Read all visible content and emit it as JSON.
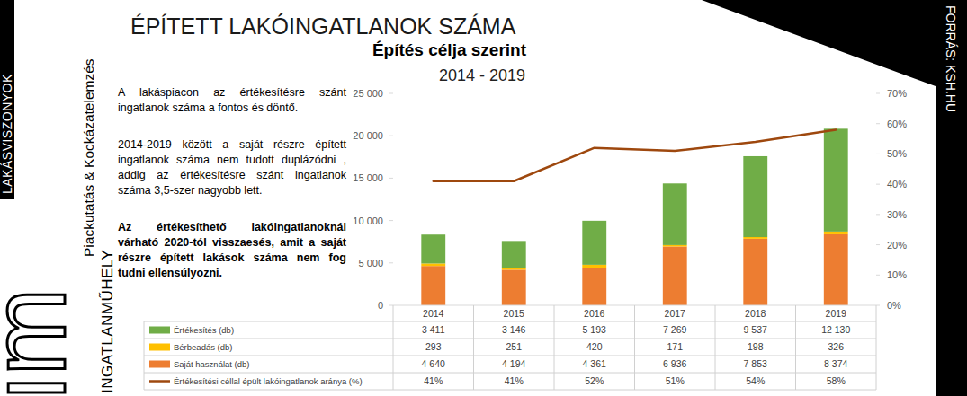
{
  "chart_data": {
    "type": "bar",
    "title": "ÉPÍTETT LAKÓINGATLANOK SZÁMA",
    "subtitle": "Építés célja szerint",
    "annotations": [
      "A lakáspiacon az értékesítésre szánt ingatlanok száma a fontos és döntő.",
      "2014-2019 között a saját részre épített ingatlanok száma nem tudott duplázódni , addig az értékesítésre szánt ingatlanok száma 3,5-szer nagyobb lett.",
      "Az értékesíthető lakóingatlanoknál várható 2020-tól visszaesés, amit a saját részre épített lakások száma nem fog tudni ellensúlyozni."
    ],
    "categories": [
      "2014",
      "2015",
      "2016",
      "2017",
      "2018",
      "2019"
    ],
    "stacked": true,
    "grid": false,
    "series": [
      {
        "name": "Értékesítés (db)",
        "type": "bar",
        "color": "#70AD47",
        "values": [
          3411,
          3146,
          5193,
          7269,
          9537,
          12130
        ],
        "value_labels": [
          "3 411",
          "3 146",
          "5 193",
          "7 269",
          "9 537",
          "12 130"
        ]
      },
      {
        "name": "Bérbeadás (db)",
        "type": "bar",
        "color": "#FFC000",
        "values": [
          293,
          251,
          420,
          171,
          198,
          326
        ],
        "value_labels": [
          "293",
          "251",
          "420",
          "171",
          "198",
          "326"
        ]
      },
      {
        "name": "Saját használat (db)",
        "type": "bar",
        "color": "#ED7D31",
        "values": [
          4640,
          4194,
          4361,
          6936,
          7853,
          8374
        ],
        "value_labels": [
          "4 640",
          "4 194",
          "4 361",
          "6 936",
          "7 853",
          "8 374"
        ]
      },
      {
        "name": "Értékesítési céllal épült lakóingatlanok aránya (%)",
        "type": "line",
        "axis": "y2",
        "color": "#9E480E",
        "values": [
          41,
          41,
          52,
          51,
          54,
          58
        ],
        "value_labels": [
          "41%",
          "41%",
          "52%",
          "51%",
          "54%",
          "58%"
        ]
      }
    ],
    "ylim": [
      0,
      25000
    ],
    "yticks": [
      0,
      {
        "value": 5000,
        "label": "5 000"
      },
      {
        "value": 10000,
        "label": "10 000"
      },
      {
        "value": 15000,
        "label": "15 000"
      },
      {
        "value": 20000,
        "label": "20 000"
      },
      {
        "value": 25000,
        "label": "25 000"
      }
    ],
    "y2lim": [
      0,
      70
    ],
    "y2ticks": [
      {
        "value": 0,
        "label": "0%"
      },
      {
        "value": 10,
        "label": "10%"
      },
      {
        "value": 20,
        "label": "20%"
      },
      {
        "value": 30,
        "label": "30%"
      },
      {
        "value": 40,
        "label": "40%"
      },
      {
        "value": 50,
        "label": "50%"
      },
      {
        "value": 60,
        "label": "60%"
      },
      {
        "value": 70,
        "label": "70%"
      }
    ]
  },
  "page": {
    "period": "2014 - 2019",
    "side_left": "LAKÁSVISZONYOK",
    "brand_sub": "Piackutatás & Kockázatelemzés",
    "brand": "INGATLANMŰHELY",
    "logo": "im",
    "source": "FORRÁS: KSH.HU"
  }
}
